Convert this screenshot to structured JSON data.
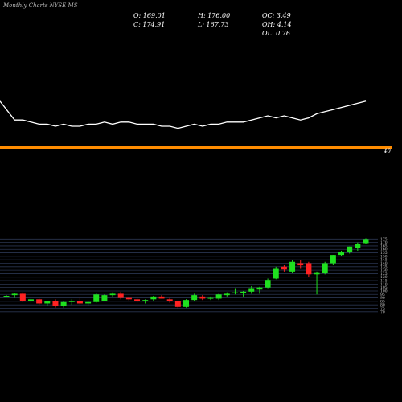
{
  "chart_data": {
    "type": "candlestick",
    "title": "Monthly Charts NYSE MS",
    "info": [
      "O: 169.01",
      "C: 174.91",
      "H: 176.00",
      "L: 167.73",
      "OC: 3.49",
      "OH: 4.14",
      "OL: 0.76"
    ],
    "up_color": "#1fe01f",
    "down_color": "#ff2222",
    "open": [
      93,
      94,
      96,
      86,
      88,
      82,
      86,
      78,
      84,
      86,
      82,
      84,
      86,
      94,
      96,
      90,
      88,
      85,
      88,
      92,
      88,
      85,
      77,
      87,
      92,
      89,
      89,
      94,
      97,
      97,
      99,
      102,
      105,
      118,
      135,
      128,
      140,
      140,
      124,
      126,
      140,
      152,
      156,
      162,
      169.01
    ],
    "high": [
      94,
      97,
      98,
      90,
      89,
      86,
      88,
      85,
      88,
      90,
      86,
      97,
      95,
      98,
      99,
      92,
      91,
      88,
      93,
      94,
      90,
      86,
      88,
      96,
      94,
      92,
      96,
      98,
      104,
      100,
      107,
      106,
      118,
      135,
      137,
      145,
      144,
      142,
      128,
      142,
      152,
      158,
      164,
      170,
      176.0
    ],
    "low": [
      92,
      90,
      84,
      82,
      80,
      78,
      76,
      76,
      80,
      80,
      79,
      83,
      85,
      92,
      88,
      86,
      83,
      82,
      86,
      89,
      83,
      75,
      76,
      85,
      87,
      87,
      87,
      92,
      95,
      92,
      96,
      96,
      104,
      117,
      128,
      126,
      133,
      120,
      95,
      124,
      138,
      150,
      154,
      158,
      167.73
    ],
    "close": [
      93,
      96,
      86,
      88,
      82,
      86,
      78,
      84,
      86,
      82,
      84,
      95,
      94,
      96,
      90,
      88,
      85,
      87,
      92,
      89,
      85,
      77,
      87,
      94,
      89,
      90,
      95,
      96,
      98,
      99,
      104,
      105,
      116,
      133,
      131,
      142,
      137,
      124,
      127,
      140,
      152,
      156,
      164,
      168,
      174.91
    ],
    "ylim": [
      64,
      180
    ],
    "yticks": [
      70,
      75,
      80,
      85,
      90,
      95,
      100,
      105,
      110,
      115,
      120,
      125,
      130,
      135,
      140,
      145,
      150,
      155,
      160,
      165,
      170,
      175
    ],
    "grid": true,
    "indicator": {
      "color": "#ffffff",
      "level": 40,
      "level_color": "#ff8c00",
      "ylim": [
        0,
        100
      ],
      "values": [
        62,
        53,
        53,
        52,
        51,
        51,
        50,
        51,
        50,
        50,
        51,
        51,
        52,
        51,
        52,
        52,
        51,
        51,
        51,
        50,
        50,
        49,
        50,
        51,
        50,
        51,
        51,
        52,
        52,
        52,
        53,
        54,
        55,
        54,
        55,
        54,
        53,
        54,
        56,
        57,
        58,
        59,
        60,
        61,
        62
      ]
    }
  }
}
